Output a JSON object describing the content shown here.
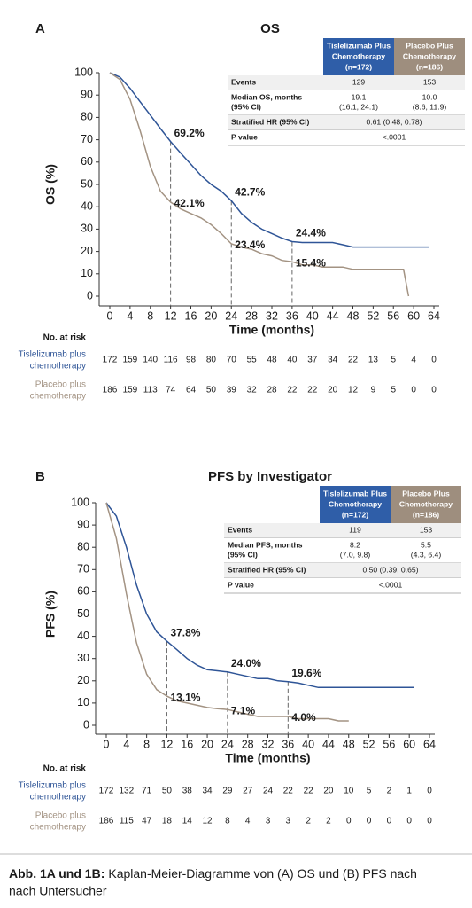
{
  "chart_data": [
    {
      "type": "line",
      "panel": "A",
      "title": "OS",
      "ylabel": "OS (%)",
      "xlabel": "Time (months)",
      "xlim": [
        0,
        64
      ],
      "ylim": [
        0,
        100
      ],
      "xticks": [
        0,
        4,
        8,
        12,
        16,
        20,
        24,
        28,
        32,
        36,
        40,
        44,
        48,
        52,
        56,
        60,
        64
      ],
      "yticks": [
        0,
        10,
        20,
        30,
        40,
        50,
        60,
        70,
        80,
        90,
        100
      ],
      "x": [
        0,
        2,
        4,
        6,
        8,
        10,
        12,
        14,
        16,
        18,
        20,
        22,
        24,
        26,
        28,
        30,
        32,
        34,
        36,
        38,
        40,
        42,
        44,
        46,
        48,
        52,
        56,
        58,
        59,
        63
      ],
      "landmark_x": [
        12,
        24,
        36
      ],
      "series": [
        {
          "color": "#2f5597",
          "risk_label": [
            "Tislelizumab plus",
            "chemotherapy"
          ],
          "values": [
            100,
            98,
            93,
            87,
            81,
            75,
            69.2,
            64,
            59,
            54,
            50,
            47,
            42.7,
            37,
            33,
            30,
            28,
            26,
            24.4,
            24,
            24,
            24,
            24,
            23,
            22,
            22,
            22,
            22,
            22,
            22
          ],
          "landmarks": [
            69.2,
            42.7,
            24.4
          ],
          "landmark_labels": [
            "69.2%",
            "42.7%",
            "24.4%"
          ],
          "at_risk": [
            172,
            159,
            140,
            116,
            98,
            80,
            70,
            55,
            48,
            40,
            37,
            34,
            22,
            13,
            5,
            4,
            0
          ]
        },
        {
          "color": "#a39383",
          "risk_label": [
            "Placebo plus",
            "chemotherapy"
          ],
          "values": [
            100,
            97,
            88,
            74,
            58,
            47,
            42.1,
            39,
            37,
            35,
            32,
            28,
            23.4,
            22,
            21,
            19,
            18,
            16,
            15.4,
            14,
            14,
            13,
            13,
            13,
            12,
            12,
            12,
            12,
            0,
            null
          ],
          "landmarks": [
            42.1,
            23.4,
            15.4
          ],
          "landmark_labels": [
            "42.1%",
            "23.4%",
            "15.4%"
          ],
          "at_risk": [
            186,
            159,
            113,
            74,
            64,
            50,
            39,
            32,
            28,
            22,
            22,
            20,
            12,
            9,
            5,
            0,
            0
          ]
        }
      ],
      "risk_title": "No. at risk",
      "table": {
        "header": [
          [
            "Tislelizumab Plus",
            "Chemotherapy",
            "(n=172)"
          ],
          [
            "Placebo Plus",
            "Chemotherapy",
            "(n=186)"
          ]
        ],
        "rows": [
          {
            "label": [
              "Events"
            ],
            "cells": [
              [
                "129"
              ],
              [
                "153"
              ]
            ]
          },
          {
            "label": [
              "Median OS, months",
              "(95% CI)"
            ],
            "cells": [
              [
                "19.1",
                "(16.1, 24.1)"
              ],
              [
                "10.0",
                "(8.6, 11.9)"
              ]
            ]
          },
          {
            "label": [
              "Stratified HR (95% CI)"
            ],
            "cells": [
              [
                "0.61 (0.48, 0.78)"
              ]
            ]
          },
          {
            "label": [
              "P value"
            ],
            "cells": [
              [
                "<.0001"
              ]
            ]
          }
        ]
      }
    },
    {
      "type": "line",
      "panel": "B",
      "title": "PFS by Investigator",
      "ylabel": "PFS (%)",
      "xlabel": "Time (months)",
      "xlim": [
        0,
        64
      ],
      "ylim": [
        0,
        100
      ],
      "xticks": [
        0,
        4,
        8,
        12,
        16,
        20,
        24,
        28,
        32,
        36,
        40,
        44,
        48,
        52,
        56,
        60,
        64
      ],
      "yticks": [
        0,
        10,
        20,
        30,
        40,
        50,
        60,
        70,
        80,
        90,
        100
      ],
      "x": [
        0,
        2,
        4,
        6,
        8,
        10,
        12,
        14,
        16,
        18,
        20,
        22,
        24,
        26,
        28,
        30,
        32,
        34,
        36,
        38,
        40,
        42,
        44,
        46,
        48,
        52,
        56,
        60,
        61
      ],
      "landmark_x": [
        12,
        24,
        36
      ],
      "series": [
        {
          "color": "#2f5597",
          "risk_label": [
            "Tislelizumab plus",
            "chemotherapy"
          ],
          "values": [
            100,
            94,
            80,
            63,
            50,
            42,
            37.8,
            34,
            30,
            27,
            25,
            24.5,
            24,
            23,
            22,
            21,
            21,
            20,
            19.6,
            19,
            18,
            17,
            17,
            17,
            17,
            17,
            17,
            17,
            17
          ],
          "landmarks": [
            37.8,
            24,
            19.6
          ],
          "landmark_labels": [
            "37.8%",
            "24.0%",
            "19.6%"
          ],
          "at_risk": [
            172,
            132,
            71,
            50,
            38,
            34,
            29,
            27,
            24,
            22,
            22,
            20,
            10,
            5,
            2,
            1,
            0
          ]
        },
        {
          "color": "#a39383",
          "risk_label": [
            "Placebo plus",
            "chemotherapy"
          ],
          "values": [
            100,
            84,
            59,
            37,
            23,
            16,
            13.1,
            11,
            10,
            9,
            8,
            7.5,
            7.1,
            6,
            5,
            4,
            4,
            4,
            4,
            3,
            3,
            3,
            3,
            2,
            2,
            null,
            null,
            null,
            null
          ],
          "landmarks": [
            13.1,
            7.1,
            4
          ],
          "landmark_labels": [
            "13.1%",
            "7.1%",
            "4.0%"
          ],
          "at_risk": [
            186,
            115,
            47,
            18,
            14,
            12,
            8,
            4,
            3,
            3,
            2,
            2,
            0,
            0,
            0,
            0,
            0
          ]
        }
      ],
      "risk_title": "No. at risk",
      "table": {
        "header": [
          [
            "Tislelizumab Plus",
            "Chemotherapy",
            "(n=172)"
          ],
          [
            "Placebo Plus",
            "Chemotherapy",
            "(n=186)"
          ]
        ],
        "rows": [
          {
            "label": [
              "Events"
            ],
            "cells": [
              [
                "119"
              ],
              [
                "153"
              ]
            ]
          },
          {
            "label": [
              "Median PFS, months",
              "(95% CI)"
            ],
            "cells": [
              [
                "8.2",
                "(7.0, 9.8)"
              ],
              [
                "5.5",
                "(4.3, 6.4)"
              ]
            ]
          },
          {
            "label": [
              "Stratified HR (95% CI)"
            ],
            "cells": [
              [
                "0.50 (0.39, 0.65)"
              ]
            ]
          },
          {
            "label": [
              "P value"
            ],
            "cells": [
              [
                "<.0001"
              ]
            ]
          }
        ]
      }
    }
  ],
  "caption": {
    "label": "Abb. 1A und 1B:",
    "lines": [
      "Kaplan-Meier-Diagramme von (A) OS und (B) PFS nach",
      "nach Untersucher"
    ]
  }
}
